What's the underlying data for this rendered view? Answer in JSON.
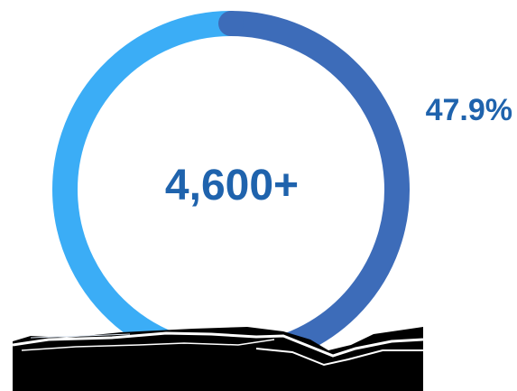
{
  "chart_data": {
    "type": "pie",
    "style": "donut",
    "center_label": "4,600+",
    "slices": [
      {
        "name": "",
        "value": 47.9,
        "label": "47.9%",
        "color": "#3d6cb9"
      },
      {
        "name": "",
        "value": 52.1,
        "label": "",
        "color": "#3badf6"
      }
    ],
    "legend": "none"
  },
  "colors": {
    "primary_text": "#1f63ad",
    "slice_dark": "#3d6cb9",
    "slice_light": "#3badf6",
    "background": "#ffffff"
  }
}
